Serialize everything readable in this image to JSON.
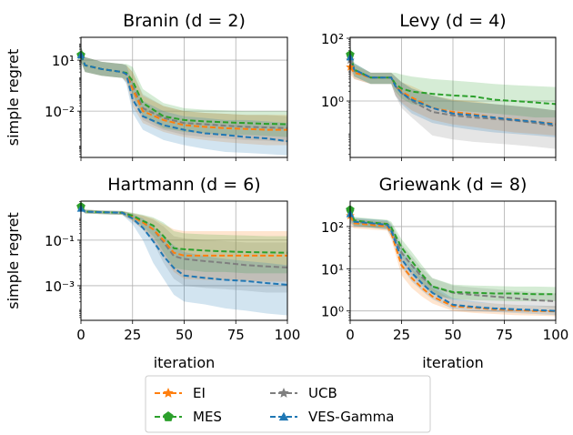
{
  "chart_data": [
    {
      "type": "line",
      "title": "Branin (d = 2)",
      "xlabel": "",
      "ylabel": "simple regret",
      "yscale": "log",
      "xlim": [
        0,
        100
      ],
      "ylim": [
        1.9e-05,
        220
      ],
      "xticks": [
        0,
        25,
        50,
        75,
        100
      ],
      "xtick_labels": [],
      "yticks": [
        10,
        0.01
      ],
      "ytick_labels": [
        "10¹",
        "10⁻²"
      ],
      "grid": true,
      "x": [
        0,
        2,
        10,
        20,
        22,
        25,
        30,
        40,
        50,
        60,
        70,
        80,
        90,
        100
      ],
      "series": [
        {
          "name": "EI",
          "color": "#ff7f0e",
          "median": [
            20,
            5,
            3,
            2,
            1.5,
            0.2,
            0.01,
            0.003,
            0.0015,
            0.0012,
            0.001,
            0.0009,
            0.0008,
            0.0008
          ],
          "lower": [
            8,
            2,
            1.2,
            0.9,
            0.5,
            0.02,
            0.002,
            0.0006,
            0.0003,
            0.0002,
            0.00015,
            0.00012,
            0.0001,
            0.0001
          ],
          "upper": [
            60,
            15,
            8,
            6,
            5,
            2,
            0.08,
            0.02,
            0.01,
            0.008,
            0.007,
            0.006,
            0.006,
            0.006
          ]
        },
        {
          "name": "MES",
          "color": "#2ca02c",
          "median": [
            20,
            5,
            3,
            2,
            1.8,
            0.6,
            0.03,
            0.005,
            0.003,
            0.0025,
            0.0022,
            0.002,
            0.0018,
            0.0017
          ],
          "lower": [
            8,
            2,
            1.2,
            0.9,
            0.7,
            0.1,
            0.005,
            0.001,
            0.0006,
            0.0005,
            0.0004,
            0.0004,
            0.00035,
            0.0003
          ],
          "upper": [
            60,
            15,
            8,
            6,
            6,
            4,
            0.2,
            0.03,
            0.015,
            0.012,
            0.011,
            0.01,
            0.01,
            0.01
          ]
        },
        {
          "name": "UCB",
          "color": "#7f7f7f",
          "median": [
            20,
            5,
            3,
            2,
            1.5,
            0.3,
            0.015,
            0.004,
            0.002,
            0.0017,
            0.0014,
            0.0012,
            0.0011,
            0.001
          ],
          "lower": [
            8,
            2,
            1.2,
            0.9,
            0.5,
            0.05,
            0.003,
            0.0008,
            0.0004,
            0.0003,
            0.00025,
            0.0002,
            0.00018,
            0.00015
          ],
          "upper": [
            60,
            15,
            8,
            6,
            5,
            2,
            0.1,
            0.02,
            0.01,
            0.008,
            0.007,
            0.006,
            0.006,
            0.005
          ]
        },
        {
          "name": "VES-Gamma",
          "color": "#1f77b4",
          "median": [
            20,
            5,
            3,
            2,
            1.5,
            0.05,
            0.005,
            0.0015,
            0.0008,
            0.0005,
            0.0004,
            0.0003,
            0.00025,
            0.00017
          ],
          "lower": [
            8,
            2,
            1.2,
            0.9,
            0.4,
            0.008,
            0.0008,
            0.0002,
            0.0001,
            6e-05,
            4e-05,
            3.5e-05,
            3e-05,
            2.5e-05
          ],
          "upper": [
            60,
            15,
            8,
            6,
            5,
            0.5,
            0.04,
            0.01,
            0.005,
            0.004,
            0.003,
            0.003,
            0.0025,
            0.002
          ]
        }
      ]
    },
    {
      "type": "line",
      "title": "Levy (d = 4)",
      "xlabel": "",
      "ylabel": "",
      "yscale": "log",
      "xlim": [
        0,
        100
      ],
      "ylim": [
        0.016,
        107
      ],
      "xticks": [
        0,
        25,
        50,
        75,
        100
      ],
      "xtick_labels": [],
      "yticks": [
        100,
        1
      ],
      "ytick_labels": [
        "10²",
        "10⁰"
      ],
      "grid": true,
      "x": [
        0,
        2,
        10,
        20,
        22,
        25,
        30,
        40,
        50,
        60,
        70,
        80,
        90,
        100
      ],
      "series": [
        {
          "name": "EI",
          "color": "#ff7f0e",
          "median": [
            12,
            8,
            5.6,
            5.6,
            3,
            2,
            1.3,
            0.6,
            0.45,
            0.38,
            0.3,
            0.26,
            0.22,
            0.19
          ],
          "lower": [
            7,
            5,
            3.5,
            3.5,
            1.5,
            0.9,
            0.5,
            0.25,
            0.18,
            0.15,
            0.12,
            0.1,
            0.09,
            0.08
          ],
          "upper": [
            40,
            14,
            8,
            8,
            6,
            4,
            3,
            1.5,
            1.1,
            1,
            0.8,
            0.7,
            0.6,
            0.5
          ]
        },
        {
          "name": "MES",
          "color": "#2ca02c",
          "median": [
            30,
            10,
            5.6,
            5.6,
            3.5,
            2.5,
            2,
            1.7,
            1.5,
            1.4,
            1.1,
            1,
            0.9,
            0.8
          ],
          "lower": [
            15,
            6,
            3.5,
            3.5,
            2,
            1.2,
            0.8,
            0.6,
            0.5,
            0.45,
            0.4,
            0.35,
            0.3,
            0.3
          ],
          "upper": [
            60,
            16,
            8,
            8,
            8,
            7,
            6,
            5,
            4.5,
            4,
            3.5,
            3.2,
            3,
            2.8
          ]
        },
        {
          "name": "UCB",
          "color": "#7f7f7f",
          "median": [
            20,
            9,
            5.6,
            5.6,
            3,
            1.8,
            1,
            0.45,
            0.35,
            0.3,
            0.27,
            0.24,
            0.2,
            0.16
          ],
          "lower": [
            10,
            5,
            3.5,
            3.5,
            1.5,
            0.6,
            0.3,
            0.08,
            0.06,
            0.05,
            0.045,
            0.04,
            0.035,
            0.03
          ],
          "upper": [
            50,
            16,
            8,
            8,
            6,
            4,
            2.5,
            1.5,
            1.1,
            0.9,
            0.8,
            0.7,
            0.6,
            0.5
          ]
        },
        {
          "name": "VES-Gamma",
          "color": "#1f77b4",
          "median": [
            25,
            10,
            5.6,
            5.6,
            3,
            1.8,
            1.1,
            0.6,
            0.4,
            0.35,
            0.3,
            0.25,
            0.22,
            0.18
          ],
          "lower": [
            12,
            6,
            3.5,
            3.5,
            1.5,
            0.8,
            0.4,
            0.2,
            0.15,
            0.12,
            0.1,
            0.09,
            0.08,
            0.07
          ],
          "upper": [
            50,
            16,
            8,
            8,
            6,
            4,
            2.5,
            1.5,
            1,
            0.9,
            0.8,
            0.7,
            0.6,
            0.5
          ]
        }
      ]
    },
    {
      "type": "line",
      "title": "Hartmann (d = 6)",
      "xlabel": "iteration",
      "ylabel": "simple regret",
      "yscale": "log",
      "xlim": [
        0,
        100
      ],
      "ylim": [
        3e-05,
        5.2
      ],
      "xticks": [
        0,
        25,
        50,
        75,
        100
      ],
      "xtick_labels": [
        "0",
        "25",
        "50",
        "75",
        "100"
      ],
      "yticks": [
        0.1,
        0.001
      ],
      "ytick_labels": [
        "10⁻¹",
        "10⁻³"
      ],
      "grid": true,
      "x": [
        0,
        2,
        10,
        20,
        25,
        30,
        35,
        40,
        45,
        50,
        60,
        70,
        80,
        90,
        100
      ],
      "series": [
        {
          "name": "EI",
          "color": "#ff7f0e",
          "median": [
            2.8,
            1.8,
            1.7,
            1.6,
            1.1,
            0.6,
            0.3,
            0.1,
            0.028,
            0.021,
            0.021,
            0.021,
            0.021,
            0.021,
            0.021
          ],
          "lower": [
            2.2,
            1.5,
            1.4,
            1.3,
            0.7,
            0.3,
            0.1,
            0.02,
            0.004,
            0.002,
            0.0018,
            0.0017,
            0.0016,
            0.0015,
            0.0015
          ],
          "upper": [
            3.3,
            2.2,
            2,
            1.9,
            1.5,
            1.2,
            0.9,
            0.5,
            0.3,
            0.25,
            0.25,
            0.25,
            0.25,
            0.25,
            0.25
          ]
        },
        {
          "name": "MES",
          "color": "#2ca02c",
          "median": [
            3,
            1.8,
            1.7,
            1.6,
            1.2,
            0.7,
            0.44,
            0.15,
            0.044,
            0.04,
            0.035,
            0.032,
            0.03,
            0.029,
            0.028
          ],
          "lower": [
            2.4,
            1.5,
            1.4,
            1.3,
            0.8,
            0.4,
            0.15,
            0.03,
            0.006,
            0.005,
            0.004,
            0.004,
            0.0035,
            0.0035,
            0.0035
          ],
          "upper": [
            3.4,
            2.2,
            2,
            1.9,
            1.6,
            1.3,
            1,
            0.6,
            0.25,
            0.2,
            0.18,
            0.17,
            0.16,
            0.15,
            0.15
          ]
        },
        {
          "name": "UCB",
          "color": "#7f7f7f",
          "median": [
            2.8,
            1.8,
            1.7,
            1.6,
            1.1,
            0.6,
            0.3,
            0.08,
            0.02,
            0.015,
            0.012,
            0.01,
            0.008,
            0.007,
            0.0063
          ],
          "lower": [
            2.2,
            1.5,
            1.4,
            1.3,
            0.7,
            0.3,
            0.08,
            0.01,
            0.002,
            0.001,
            0.0008,
            0.0007,
            0.0006,
            0.0005,
            0.0005
          ],
          "upper": [
            3.3,
            2.2,
            2,
            1.9,
            1.5,
            1.2,
            0.8,
            0.4,
            0.15,
            0.12,
            0.1,
            0.09,
            0.08,
            0.08,
            0.08
          ]
        },
        {
          "name": "VES-Gamma",
          "color": "#1f77b4",
          "median": [
            2.5,
            1.8,
            1.7,
            1.6,
            0.9,
            0.35,
            0.09,
            0.02,
            0.006,
            0.0028,
            0.0022,
            0.0018,
            0.0016,
            0.0013,
            0.0011
          ],
          "lower": [
            2,
            1.5,
            1.4,
            1.3,
            0.5,
            0.1,
            0.01,
            0.002,
            0.0004,
            0.0002,
            0.00015,
            0.0001,
            8e-05,
            6e-05,
            5e-05
          ],
          "upper": [
            3.2,
            2.2,
            2,
            1.9,
            1.4,
            0.9,
            0.4,
            0.15,
            0.06,
            0.03,
            0.02,
            0.015,
            0.012,
            0.01,
            0.008
          ]
        }
      ]
    },
    {
      "type": "line",
      "title": "Griewank (d = 8)",
      "xlabel": "iteration",
      "ylabel": "",
      "yscale": "log",
      "xlim": [
        0,
        100
      ],
      "ylim": [
        0.6,
        400
      ],
      "xticks": [
        0,
        25,
        50,
        75,
        100
      ],
      "xtick_labels": [
        "0",
        "25",
        "50",
        "75",
        "100"
      ],
      "yticks": [
        100,
        10,
        1
      ],
      "ytick_labels": [
        "10²",
        "10¹",
        "10⁰"
      ],
      "grid": true,
      "x": [
        0,
        2,
        10,
        18,
        20,
        25,
        30,
        35,
        40,
        50,
        60,
        70,
        80,
        90,
        100
      ],
      "series": [
        {
          "name": "EI",
          "color": "#ff7f0e",
          "median": [
            180,
            120,
            110,
            100,
            70,
            12,
            6,
            3.5,
            2.2,
            1.3,
            1.2,
            1.1,
            1.05,
            1.0,
            0.98
          ],
          "lower": [
            110,
            90,
            85,
            80,
            50,
            7,
            3.5,
            2.2,
            1.5,
            1,
            0.9,
            0.85,
            0.8,
            0.78,
            0.75
          ],
          "upper": [
            280,
            150,
            140,
            130,
            100,
            20,
            10,
            6,
            3.5,
            1.8,
            1.6,
            1.5,
            1.4,
            1.3,
            1.3
          ]
        },
        {
          "name": "MES",
          "color": "#2ca02c",
          "median": [
            250,
            140,
            125,
            115,
            95,
            32,
            15,
            7.3,
            3.8,
            2.8,
            2.7,
            2.6,
            2.6,
            2.5,
            2.5
          ],
          "lower": [
            150,
            105,
            95,
            90,
            70,
            20,
            9,
            4.5,
            2.5,
            1.9,
            1.8,
            1.75,
            1.7,
            1.7,
            1.7
          ],
          "upper": [
            350,
            170,
            155,
            145,
            130,
            50,
            25,
            12,
            6,
            4.2,
            4,
            3.9,
            3.8,
            3.8,
            3.7
          ]
        },
        {
          "name": "UCB",
          "color": "#7f7f7f",
          "median": [
            220,
            130,
            120,
            110,
            85,
            24,
            12,
            6.3,
            3.8,
            2.7,
            2.4,
            2.2,
            2,
            1.8,
            1.7
          ],
          "lower": [
            130,
            100,
            95,
            85,
            60,
            15,
            7,
            4,
            2.5,
            1.8,
            1.6,
            1.5,
            1.4,
            1.3,
            1.2
          ],
          "upper": [
            320,
            160,
            150,
            140,
            120,
            38,
            20,
            10,
            6,
            4,
            3.6,
            3.3,
            3,
            2.8,
            2.6
          ]
        },
        {
          "name": "VES-Gamma",
          "color": "#1f77b4",
          "median": [
            200,
            130,
            120,
            110,
            80,
            17,
            8,
            4.5,
            2.7,
            1.4,
            1.25,
            1.15,
            1.1,
            1.05,
            1.0
          ],
          "lower": [
            120,
            100,
            95,
            85,
            60,
            11,
            5,
            3,
            1.9,
            1.1,
            1,
            0.95,
            0.9,
            0.85,
            0.8
          ],
          "upper": [
            300,
            160,
            150,
            140,
            110,
            28,
            13,
            7,
            4,
            2,
            1.7,
            1.5,
            1.4,
            1.35,
            1.3
          ]
        }
      ]
    }
  ],
  "legend": {
    "placement": "bottom-center",
    "entries": [
      {
        "label": "EI",
        "color": "#ff7f0e",
        "marker": "star"
      },
      {
        "label": "MES",
        "color": "#2ca02c",
        "marker": "pentagon"
      },
      {
        "label": "UCB",
        "color": "#7f7f7f",
        "marker": "star"
      },
      {
        "label": "VES-Gamma",
        "color": "#1f77b4",
        "marker": "triangle"
      }
    ]
  }
}
